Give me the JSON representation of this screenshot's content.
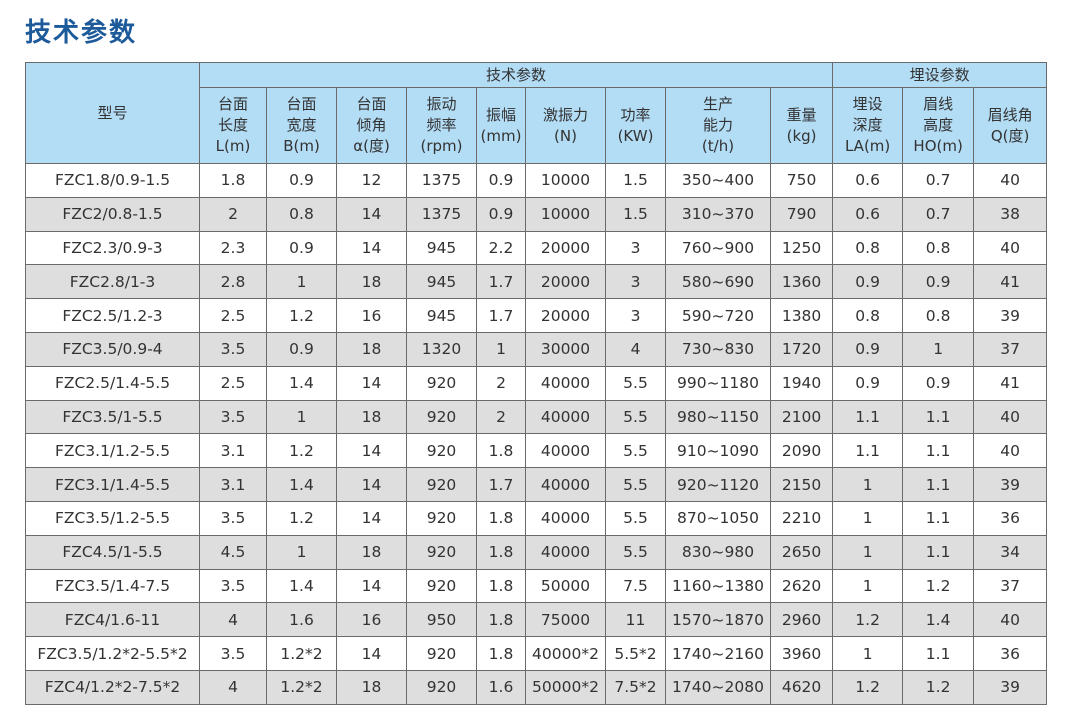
{
  "title": "技术参数",
  "table": {
    "model_header": "型号",
    "group_tech": "技术参数",
    "group_bury": "埋设参数",
    "columns": [
      [
        "台面",
        "长度",
        "L(m)"
      ],
      [
        "台面",
        "宽度",
        "B(m)"
      ],
      [
        "台面",
        "倾角",
        "α(度)"
      ],
      [
        "振动",
        "频率",
        "(rpm)"
      ],
      [
        "振幅",
        "(mm)"
      ],
      [
        "激振力",
        "(N)"
      ],
      [
        "功率",
        "(KW)"
      ],
      [
        "生产",
        "能力",
        "(t/h)"
      ],
      [
        "重量",
        "(kg)"
      ],
      [
        "埋设",
        "深度",
        "LA(m)"
      ],
      [
        "眉线",
        "高度",
        "HO(m)"
      ],
      [
        "眉线角",
        "Q(度)"
      ]
    ],
    "rows": [
      [
        "FZC1.8/0.9-1.5",
        "1.8",
        "0.9",
        "12",
        "1375",
        "0.9",
        "10000",
        "1.5",
        "350~400",
        "750",
        "0.6",
        "0.7",
        "40"
      ],
      [
        "FZC2/0.8-1.5",
        "2",
        "0.8",
        "14",
        "1375",
        "0.9",
        "10000",
        "1.5",
        "310~370",
        "790",
        "0.6",
        "0.7",
        "38"
      ],
      [
        "FZC2.3/0.9-3",
        "2.3",
        "0.9",
        "14",
        "945",
        "2.2",
        "20000",
        "3",
        "760~900",
        "1250",
        "0.8",
        "0.8",
        "40"
      ],
      [
        "FZC2.8/1-3",
        "2.8",
        "1",
        "18",
        "945",
        "1.7",
        "20000",
        "3",
        "580~690",
        "1360",
        "0.9",
        "0.9",
        "41"
      ],
      [
        "FZC2.5/1.2-3",
        "2.5",
        "1.2",
        "16",
        "945",
        "1.7",
        "20000",
        "3",
        "590~720",
        "1380",
        "0.8",
        "0.8",
        "39"
      ],
      [
        "FZC3.5/0.9-4",
        "3.5",
        "0.9",
        "18",
        "1320",
        "1",
        "30000",
        "4",
        "730~830",
        "1720",
        "0.9",
        "1",
        "37"
      ],
      [
        "FZC2.5/1.4-5.5",
        "2.5",
        "1.4",
        "14",
        "920",
        "2",
        "40000",
        "5.5",
        "990~1180",
        "1940",
        "0.9",
        "0.9",
        "41"
      ],
      [
        "FZC3.5/1-5.5",
        "3.5",
        "1",
        "18",
        "920",
        "2",
        "40000",
        "5.5",
        "980~1150",
        "2100",
        "1.1",
        "1.1",
        "40"
      ],
      [
        "FZC3.1/1.2-5.5",
        "3.1",
        "1.2",
        "14",
        "920",
        "1.8",
        "40000",
        "5.5",
        "910~1090",
        "2090",
        "1.1",
        "1.1",
        "40"
      ],
      [
        "FZC3.1/1.4-5.5",
        "3.1",
        "1.4",
        "14",
        "920",
        "1.7",
        "40000",
        "5.5",
        "920~1120",
        "2150",
        "1",
        "1.1",
        "39"
      ],
      [
        "FZC3.5/1.2-5.5",
        "3.5",
        "1.2",
        "14",
        "920",
        "1.8",
        "40000",
        "5.5",
        "870~1050",
        "2210",
        "1",
        "1.1",
        "36"
      ],
      [
        "FZC4.5/1-5.5",
        "4.5",
        "1",
        "18",
        "920",
        "1.8",
        "40000",
        "5.5",
        "830~980",
        "2650",
        "1",
        "1.1",
        "34"
      ],
      [
        "FZC3.5/1.4-7.5",
        "3.5",
        "1.4",
        "14",
        "920",
        "1.8",
        "50000",
        "7.5",
        "1160~1380",
        "2620",
        "1",
        "1.2",
        "37"
      ],
      [
        "FZC4/1.6-11",
        "4",
        "1.6",
        "16",
        "950",
        "1.8",
        "75000",
        "11",
        "1570~1870",
        "2960",
        "1.2",
        "1.4",
        "40"
      ],
      [
        "FZC3.5/1.2*2-5.5*2",
        "3.5",
        "1.2*2",
        "14",
        "920",
        "1.8",
        "40000*2",
        "5.5*2",
        "1740~2160",
        "3960",
        "1",
        "1.1",
        "36"
      ],
      [
        "FZC4/1.2*2-7.5*2",
        "4",
        "1.2*2",
        "18",
        "920",
        "1.6",
        "50000*2",
        "7.5*2",
        "1740~2080",
        "4620",
        "1.2",
        "1.2",
        "39"
      ]
    ]
  }
}
